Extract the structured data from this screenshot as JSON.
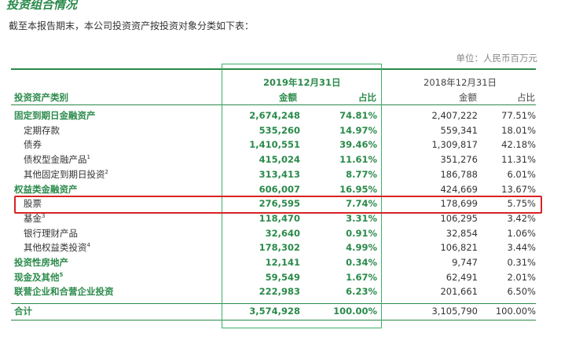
{
  "title": "投资组合情况",
  "intro": "截至本报告期末，本公司投资资产按投资对象分类如下表：",
  "unit": "单位：人民币百万元",
  "header": {
    "category": "投资资产类别",
    "date_2019": "2019年12月31日",
    "date_2018": "2018年12月31日",
    "amount": "金额",
    "ratio": "占比"
  },
  "rows": [
    {
      "label": "固定到期日金融资产",
      "sup": "",
      "a19": "2,674,248",
      "r19": "74.81%",
      "a18": "2,407,222",
      "r18": "77.51%",
      "bold": true
    },
    {
      "label": "定期存款",
      "sup": "",
      "a19": "535,260",
      "r19": "14.97%",
      "a18": "559,341",
      "r18": "18.01%",
      "bold": false
    },
    {
      "label": "债券",
      "sup": "",
      "a19": "1,410,551",
      "r19": "39.46%",
      "a18": "1,309,817",
      "r18": "42.18%",
      "bold": false
    },
    {
      "label": "债权型金融产品",
      "sup": "1",
      "a19": "415,024",
      "r19": "11.61%",
      "a18": "351,276",
      "r18": "11.31%",
      "bold": false
    },
    {
      "label": "其他固定到期日投资",
      "sup": "2",
      "a19": "313,413",
      "r19": "8.77%",
      "a18": "186,788",
      "r18": "6.01%",
      "bold": false
    },
    {
      "label": "权益类金融资产",
      "sup": "",
      "a19": "606,007",
      "r19": "16.95%",
      "a18": "424,669",
      "r18": "13.67%",
      "bold": true
    },
    {
      "label": "股票",
      "sup": "",
      "a19": "276,595",
      "r19": "7.74%",
      "a18": "178,699",
      "r18": "5.75%",
      "bold": false
    },
    {
      "label": "基金",
      "sup": "3",
      "a19": "118,470",
      "r19": "3.31%",
      "a18": "106,295",
      "r18": "3.42%",
      "bold": false
    },
    {
      "label": "银行理财产品",
      "sup": "",
      "a19": "32,640",
      "r19": "0.91%",
      "a18": "32,854",
      "r18": "1.06%",
      "bold": false
    },
    {
      "label": "其他权益类投资",
      "sup": "4",
      "a19": "178,302",
      "r19": "4.99%",
      "a18": "106,821",
      "r18": "3.44%",
      "bold": false
    },
    {
      "label": "投资性房地产",
      "sup": "",
      "a19": "12,141",
      "r19": "0.34%",
      "a18": "9,747",
      "r18": "0.31%",
      "bold": true
    },
    {
      "label": "现金及其他",
      "sup": "5",
      "a19": "59,549",
      "r19": "1.67%",
      "a18": "62,491",
      "r18": "2.01%",
      "bold": true
    },
    {
      "label": "联营企业和合营企业投资",
      "sup": "",
      "a19": "222,983",
      "r19": "6.23%",
      "a18": "201,661",
      "r18": "6.50%",
      "bold": true
    }
  ],
  "total": {
    "label": "合计",
    "a19": "3,574,928",
    "r19": "100.00%",
    "a18": "3,105,790",
    "r18": "100.00%"
  },
  "colors": {
    "green": "#2a8a4a",
    "highlight_red": "#d92323",
    "column_box_green": "#3cb06a"
  }
}
